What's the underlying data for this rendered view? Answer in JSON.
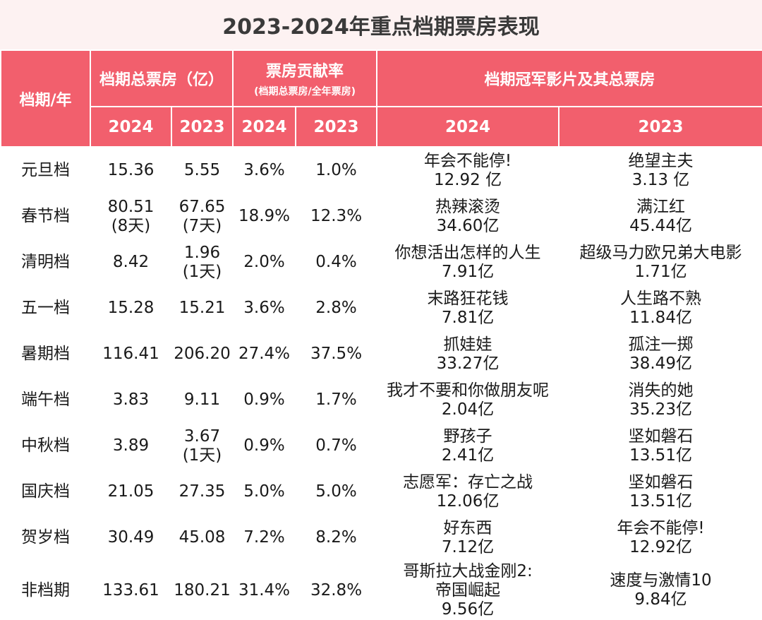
{
  "title": "2023-2024年重点档期票房表现",
  "header": {
    "period_year": "档期/年",
    "total_box_office": "档期总票房（亿）",
    "contribution": "票房贡献率",
    "contribution_sub": "(档期总票房/全年票房)",
    "champion": "档期冠军影片及其总票房",
    "y2024": "2024",
    "y2023": "2023"
  },
  "rows": [
    {
      "period": "元旦档",
      "bo2024": [
        "15.36"
      ],
      "bo2023": [
        "5.55"
      ],
      "rate2024": "3.6%",
      "rate2023": "1.0%",
      "champ2024": [
        "年会不能停!",
        "12.92 亿"
      ],
      "champ2023": [
        "绝望主夫",
        "3.13 亿"
      ]
    },
    {
      "period": "春节档",
      "bo2024": [
        "80.51",
        "(8天)"
      ],
      "bo2023": [
        "67.65",
        "(7天)"
      ],
      "rate2024": "18.9%",
      "rate2023": "12.3%",
      "champ2024": [
        "热辣滚烫",
        "34.60亿"
      ],
      "champ2023": [
        "满江红",
        "45.44亿"
      ]
    },
    {
      "period": "清明档",
      "bo2024": [
        "8.42"
      ],
      "bo2023": [
        "1.96",
        "(1天)"
      ],
      "rate2024": "2.0%",
      "rate2023": "0.4%",
      "champ2024": [
        "你想活出怎样的人生",
        "7.91亿"
      ],
      "champ2023": [
        "超级马力欧兄弟大电影",
        "1.71亿"
      ]
    },
    {
      "period": "五一档",
      "bo2024": [
        "15.28"
      ],
      "bo2023": [
        "15.21"
      ],
      "rate2024": "3.6%",
      "rate2023": "2.8%",
      "champ2024": [
        "末路狂花钱",
        "7.81亿"
      ],
      "champ2023": [
        "人生路不熟",
        "11.84亿"
      ]
    },
    {
      "period": "暑期档",
      "bo2024": [
        "116.41"
      ],
      "bo2023": [
        "206.20"
      ],
      "rate2024": "27.4%",
      "rate2023": "37.5%",
      "champ2024": [
        "抓娃娃",
        "33.27亿"
      ],
      "champ2023": [
        "孤注一掷",
        "38.49亿"
      ]
    },
    {
      "period": "端午档",
      "bo2024": [
        "3.83"
      ],
      "bo2023": [
        "9.11"
      ],
      "rate2024": "0.9%",
      "rate2023": "1.7%",
      "champ2024": [
        "我才不要和你做朋友呢",
        "2.04亿"
      ],
      "champ2023": [
        "消失的她",
        "35.23亿"
      ]
    },
    {
      "period": "中秋档",
      "bo2024": [
        "3.89"
      ],
      "bo2023": [
        "3.67",
        "(1天)"
      ],
      "rate2024": "0.9%",
      "rate2023": "0.7%",
      "champ2024": [
        "野孩子",
        "2.41亿"
      ],
      "champ2023": [
        "坚如磐石",
        "13.51亿"
      ]
    },
    {
      "period": "国庆档",
      "bo2024": [
        "21.05"
      ],
      "bo2023": [
        "27.35"
      ],
      "rate2024": "5.0%",
      "rate2023": "5.0%",
      "champ2024": [
        "志愿军：存亡之战",
        "12.06亿"
      ],
      "champ2023": [
        "坚如磐石",
        "13.51亿"
      ]
    },
    {
      "period": "贺岁档",
      "bo2024": [
        "30.49"
      ],
      "bo2023": [
        "45.08"
      ],
      "rate2024": "7.2%",
      "rate2023": "8.2%",
      "champ2024": [
        "好东西",
        "7.12亿"
      ],
      "champ2023": [
        "年会不能停!",
        "12.92亿"
      ]
    },
    {
      "period": "非档期",
      "bo2024": [
        "133.61"
      ],
      "bo2023": [
        "180.21"
      ],
      "rate2024": "31.4%",
      "rate2023": "32.8%",
      "champ2024": [
        "哥斯拉大战金刚2:",
        "帝国崛起",
        "9.56亿"
      ],
      "champ2023": [
        "速度与激情10",
        "9.84亿"
      ]
    }
  ]
}
